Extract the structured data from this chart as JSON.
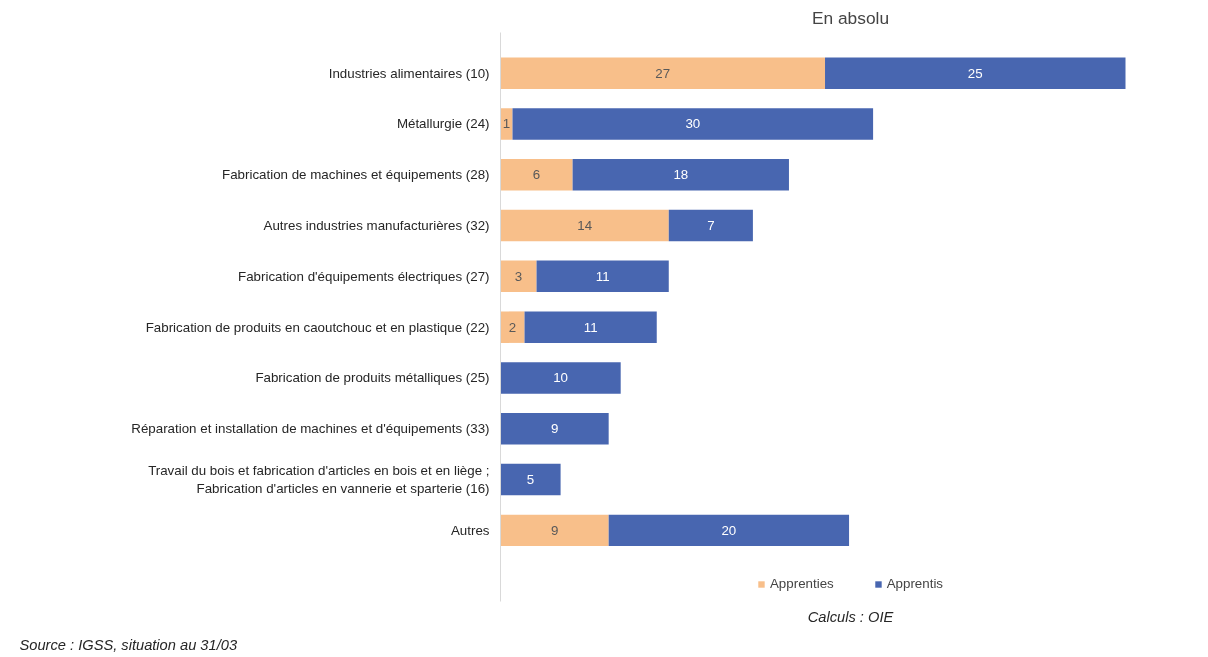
{
  "chart_data": {
    "type": "bar",
    "orientation": "horizontal",
    "stacked": true,
    "title": "En absolu",
    "categories": [
      "Industries alimentaires (10)",
      "Métallurgie (24)",
      "Fabrication de machines et équipements (28)",
      "Autres industries manufacturières (32)",
      "Fabrication d'équipements électriques (27)",
      "Fabrication de produits en caoutchouc et en plastique (22)",
      "Fabrication de produits métalliques (25)",
      "Réparation et installation de machines et d'équipements (33)",
      "Travail du bois et fabrication d'articles en bois et en liège ;\nFabrication d'articles en vannerie et sparterie (16)",
      "Autres"
    ],
    "series": [
      {
        "name": "Apprenties",
        "color": "#f8bf8a",
        "values": [
          27,
          1,
          6,
          14,
          3,
          2,
          null,
          null,
          null,
          9
        ]
      },
      {
        "name": "Apprentis",
        "color": "#4866b0",
        "values": [
          25,
          30,
          18,
          7,
          11,
          11,
          10,
          9,
          5,
          20
        ]
      }
    ],
    "data_labels": true,
    "legend": "bottom",
    "grid": false,
    "tick_labels": "y",
    "annotations": [
      "Calculs : OIE",
      "Source : IGSS, situation au 31/03"
    ]
  }
}
